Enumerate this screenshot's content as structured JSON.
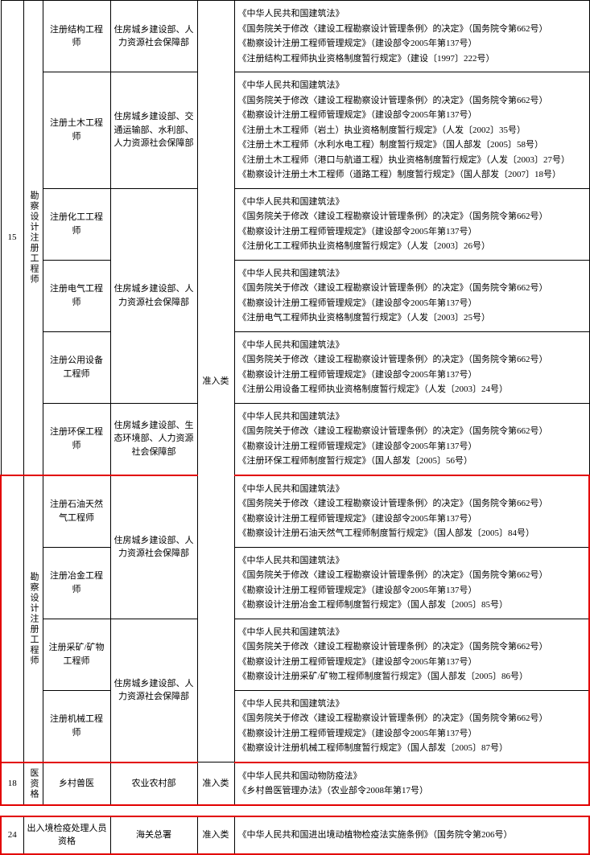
{
  "cols": {
    "c0": 28,
    "c1": 24,
    "c2": 84,
    "c3": 108,
    "c4": 46,
    "c5": 433
  },
  "row15": {
    "no": "15",
    "groupA": "勘察设计注册工程师",
    "groupB": "勘察设计注册工程师",
    "col4": "准入类",
    "items": [
      {
        "name": "注册结构工程师",
        "dept": "住房城乡建设部、人力资源社会保障部",
        "basis": [
          "《中华人民共和国建筑法》",
          "《国务院关于修改〈建设工程勘察设计管理条例〉的决定》（国务院令第662号）",
          "《勘察设计注册工程师管理规定》（建设部令2005年第137号）",
          "《注册结构工程师执业资格制度暂行规定》（建设〔1997〕222号）"
        ]
      },
      {
        "name": "注册土木工程师",
        "dept": "住房城乡建设部、交通运输部、水利部、人力资源社会保障部",
        "basis": [
          "《中华人民共和国建筑法》",
          "《国务院关于修改〈建设工程勘察设计管理条例〉的决定》（国务院令第662号）",
          "《勘察设计注册工程师管理规定》（建设部令2005年第137号）",
          "《注册土木工程师（岩土）执业资格制度暂行规定》（人发〔2002〕35号）",
          "《注册土木工程师（水利水电工程）制度暂行规定》（国人部发〔2005〕58号）",
          "《注册土木工程师（港口与航道工程）执业资格制度暂行规定》（人发〔2003〕27号）",
          "《勘察设计注册土木工程师（道路工程）制度暂行规定》（国人部发〔2007〕18号）"
        ]
      },
      {
        "name": "注册化工工程师",
        "dept": "住房城乡建设部、人力资源社会保障部",
        "deptRowspan": 3,
        "basis": [
          "《中华人民共和国建筑法》",
          "《国务院关于修改〈建设工程勘察设计管理条例〉的决定》（国务院令第662号）",
          "《勘察设计注册工程师管理规定》（建设部令2005年第137号）",
          "《注册化工工程师执业资格制度暂行规定》（人发〔2003〕26号）"
        ]
      },
      {
        "name": "注册电气工程师",
        "basis": [
          "《中华人民共和国建筑法》",
          "《国务院关于修改〈建设工程勘察设计管理条例〉的决定》（国务院令第662号）",
          "《勘察设计注册工程师管理规定》（建设部令2005年第137号）",
          "《注册电气工程师执业资格制度暂行规定》（人发〔2003〕25号）"
        ]
      },
      {
        "name": "注册公用设备工程师",
        "basis": [
          "《中华人民共和国建筑法》",
          "《国务院关于修改〈建设工程勘察设计管理条例〉的决定》（国务院令第662号）",
          "《勘察设计注册工程师管理规定》（建设部令2005年第137号）",
          "《注册公用设备工程师执业资格制度暂行规定》（人发〔2003〕24号）"
        ]
      },
      {
        "name": "注册环保工程师",
        "dept": "住房城乡建设部、生态环境部、人力资源社会保障部",
        "basis": [
          "《中华人民共和国建筑法》",
          "《国务院关于修改〈建设工程勘察设计管理条例〉的决定》（国务院令第662号）",
          "《勘察设计注册工程师管理规定》（建设部令2005年第137号）",
          "《注册环保工程师制度暂行规定》（国人部发〔2005〕56号）"
        ]
      },
      {
        "name": "注册石油天然气工程师",
        "dept": "住房城乡建设部、人力资源社会保障部",
        "deptRowspan": 2,
        "hl": "top",
        "basis": [
          "《中华人民共和国建筑法》",
          "《国务院关于修改〈建设工程勘察设计管理条例〉的决定》（国务院令第662号）",
          "《勘察设计注册工程师管理规定》（建设部令2005年第137号）",
          "《勘察设计注册石油天然气工程师制度暂行规定》（国人部发〔2005〕84号）"
        ]
      },
      {
        "name": "注册冶金工程师",
        "basis": [
          "《中华人民共和国建筑法》",
          "《国务院关于修改〈建设工程勘察设计管理条例〉的决定》（国务院令第662号）",
          "《勘察设计注册工程师管理规定》（建设部令2005年第137号）",
          "《勘察设计注册冶金工程师制度暂行规定》（国人部发〔2005〕85号）"
        ]
      },
      {
        "name": "注册采矿/矿物工程师",
        "dept": "住房城乡建设部、人力资源社会保障部",
        "deptRowspan": 2,
        "basis": [
          "《中华人民共和国建筑法》",
          "《国务院关于修改〈建设工程勘察设计管理条例〉的决定》（国务院令第662号）",
          "《勘察设计注册工程师管理规定》（建设部令2005年第137号）",
          "《勘察设计注册采矿/矿物工程师制度暂行规定》（国人部发〔2005〕86号）"
        ]
      },
      {
        "name": "注册机械工程师",
        "hl": "bottom",
        "basis": [
          "《中华人民共和国建筑法》",
          "《国务院关于修改〈建设工程勘察设计管理条例〉的决定》（国务院令第662号）",
          "《勘察设计注册工程师管理规定》（建设部令2005年第137号）",
          "《勘察设计注册机械工程师制度暂行规定》（国人部发〔2005〕87号）"
        ]
      }
    ]
  },
  "row18": {
    "no": "18",
    "group": "医资格",
    "name": "乡村兽医",
    "dept": "农业农村部",
    "col4": "准入类",
    "basis": [
      "《中华人民共和国动物防疫法》",
      "《乡村兽医管理办法》（农业部令2008年第17号）"
    ]
  },
  "row24": {
    "no": "24",
    "name": "出入境检疫处理人员资格",
    "dept": "海关总署",
    "col4": "准入类",
    "basis": [
      "《中华人民共和国进出境动植物检疫法实施条例》（国务院令第206号）"
    ]
  }
}
